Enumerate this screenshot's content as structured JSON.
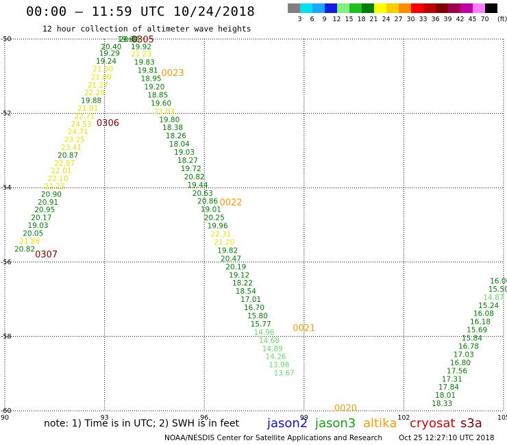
{
  "title": "00:00 – 11:59 UTC 10/24/2018",
  "subtitle": "12 hour collection of altimeter wave heights",
  "scale": {
    "unit": "(ft)",
    "bins": [
      {
        "label": "3",
        "color": "#808080"
      },
      {
        "label": "6",
        "color": "#00e0f0"
      },
      {
        "label": "9",
        "color": "#18a8ff"
      },
      {
        "label": "12",
        "color": "#1020e0"
      },
      {
        "label": "15",
        "color": "#80f080"
      },
      {
        "label": "18",
        "color": "#20c020"
      },
      {
        "label": "21",
        "color": "#008000"
      },
      {
        "label": "24",
        "color": "#ffff00"
      },
      {
        "label": "27",
        "color": "#ffcc00"
      },
      {
        "label": "30",
        "color": "#ff8c00"
      },
      {
        "label": "33",
        "color": "#ff0000"
      },
      {
        "label": "36",
        "color": "#c00000"
      },
      {
        "label": "39",
        "color": "#800000"
      },
      {
        "label": "42",
        "color": "#a00050"
      },
      {
        "label": "45",
        "color": "#c000a0"
      },
      {
        "label": "70",
        "color": "#ff80ff"
      },
      {
        "label": "",
        "color": "#000000"
      }
    ]
  },
  "chart_data": {
    "type": "scatter",
    "x_ticks": [
      "90",
      "93",
      "96",
      "99",
      "102",
      "105"
    ],
    "y_ticks": [
      "-50",
      "-52",
      "-54",
      "-56",
      "-58",
      "-60"
    ],
    "xlim": [
      90,
      105
    ],
    "ylim": [
      -60,
      -50
    ],
    "grid": true,
    "color_rules": {
      "light_green": [
        0,
        15
      ],
      "green": [
        15,
        21
      ],
      "yellow": [
        21,
        24
      ]
    },
    "colors": {
      "light_green": "#66dd66",
      "green": "#008000",
      "yellow": "#e6e600",
      "altika": "#ff9900",
      "cryosat": "#800000"
    },
    "time_labels": [
      {
        "text": "0305",
        "lon": 94.15,
        "lat": -50.0,
        "sat": "cryosat"
      },
      {
        "text": "0023",
        "lon": 95.05,
        "lat": -50.9,
        "sat": "altika"
      },
      {
        "text": "0306",
        "lon": 93.1,
        "lat": -52.25,
        "sat": "cryosat"
      },
      {
        "text": "0022",
        "lon": 96.8,
        "lat": -54.38,
        "sat": "altika"
      },
      {
        "text": "0307",
        "lon": 91.25,
        "lat": -55.78,
        "sat": "cryosat"
      },
      {
        "text": "0021",
        "lon": 99.0,
        "lat": -57.76,
        "sat": "altika"
      },
      {
        "text": "0020",
        "lon": 100.25,
        "lat": -59.92,
        "sat": "altika"
      }
    ],
    "tracks": [
      {
        "points": [
          [
            93.7,
            -50.0,
            19.69
          ],
          [
            93.75,
            -50.0,
            20.4
          ],
          [
            93.2,
            -50.2,
            20.4
          ],
          [
            93.15,
            -50.38,
            19.29
          ],
          [
            93.05,
            -50.59,
            19.24
          ],
          [
            92.95,
            -50.8,
            21.3
          ],
          [
            92.9,
            -51.02,
            21.0
          ],
          [
            92.8,
            -51.23,
            21.27
          ],
          [
            92.7,
            -51.44,
            22.2
          ],
          [
            92.6,
            -51.65,
            19.88
          ],
          [
            92.5,
            -51.86,
            21.91
          ],
          [
            92.4,
            -52.07,
            22.71
          ],
          [
            92.3,
            -52.28,
            24.53
          ],
          [
            92.2,
            -52.49,
            24.71
          ],
          [
            92.1,
            -52.7,
            23.25
          ],
          [
            92.0,
            -52.91,
            23.41
          ],
          [
            91.9,
            -53.12,
            20.87
          ],
          [
            91.8,
            -53.33,
            22.87
          ],
          [
            91.7,
            -53.54,
            22.01
          ],
          [
            91.6,
            -53.75,
            22.1
          ],
          [
            91.5,
            -53.96,
            21.23
          ],
          [
            91.4,
            -54.17,
            20.9
          ],
          [
            91.3,
            -54.38,
            20.91
          ],
          [
            91.2,
            -54.59,
            20.95
          ],
          [
            91.1,
            -54.8,
            20.17
          ],
          [
            91.0,
            -55.01,
            19.03
          ],
          [
            90.85,
            -55.22,
            20.05
          ],
          [
            90.75,
            -55.43,
            21.88
          ],
          [
            90.6,
            -55.64,
            20.82
          ]
        ]
      },
      {
        "points": [
          [
            94.1,
            -50.2,
            19.92
          ],
          [
            94.1,
            -50.4,
            21.23
          ],
          [
            94.2,
            -50.62,
            19.83
          ],
          [
            94.3,
            -50.84,
            19.81
          ],
          [
            94.4,
            -51.06,
            18.95
          ],
          [
            94.5,
            -51.28,
            19.2
          ],
          [
            94.6,
            -51.5,
            18.85
          ],
          [
            94.7,
            -51.72,
            19.6
          ],
          [
            94.8,
            -51.94,
            21.03
          ],
          [
            94.95,
            -52.16,
            19.8
          ],
          [
            95.05,
            -52.38,
            18.38
          ],
          [
            95.15,
            -52.6,
            18.26
          ],
          [
            95.25,
            -52.82,
            18.04
          ],
          [
            95.4,
            -53.04,
            19.03
          ],
          [
            95.5,
            -53.26,
            18.27
          ],
          [
            95.6,
            -53.48,
            19.72
          ],
          [
            95.7,
            -53.7,
            20.82
          ],
          [
            95.8,
            -53.92,
            19.44
          ],
          [
            95.95,
            -54.14,
            20.63
          ],
          [
            96.1,
            -54.36,
            20.86
          ],
          [
            96.2,
            -54.58,
            19.01
          ],
          [
            96.3,
            -54.8,
            20.25
          ],
          [
            96.4,
            -55.02,
            19.96
          ],
          [
            96.5,
            -55.24,
            22.31
          ],
          [
            96.6,
            -55.46,
            21.2
          ],
          [
            96.7,
            -55.68,
            19.82
          ],
          [
            96.8,
            -55.9,
            20.47
          ],
          [
            96.95,
            -56.12,
            20.19
          ],
          [
            97.05,
            -56.34,
            19.12
          ],
          [
            97.15,
            -56.56,
            18.22
          ],
          [
            97.25,
            -56.78,
            18.54
          ],
          [
            97.4,
            -57.0,
            17.01
          ],
          [
            97.5,
            -57.22,
            16.7
          ],
          [
            97.6,
            -57.44,
            15.8
          ],
          [
            97.7,
            -57.66,
            15.77
          ],
          [
            97.8,
            -57.88,
            14.96
          ],
          [
            97.95,
            -58.1,
            14.68
          ],
          [
            98.05,
            -58.32,
            14.89
          ],
          [
            98.15,
            -58.54,
            14.26
          ],
          [
            98.25,
            -58.76,
            13.98
          ],
          [
            98.4,
            -58.98,
            13.67
          ]
        ]
      },
      {
        "points": [
          [
            104.9,
            -56.5,
            16.0
          ],
          [
            104.85,
            -56.72,
            15.5
          ],
          [
            104.7,
            -56.94,
            14.87
          ],
          [
            104.55,
            -57.16,
            15.24
          ],
          [
            104.4,
            -57.38,
            16.08
          ],
          [
            104.3,
            -57.6,
            16.18
          ],
          [
            104.2,
            -57.82,
            15.69
          ],
          [
            104.05,
            -58.04,
            15.84
          ],
          [
            103.95,
            -58.26,
            16.78
          ],
          [
            103.8,
            -58.48,
            17.03
          ],
          [
            103.7,
            -58.7,
            16.8
          ],
          [
            103.6,
            -58.92,
            17.56
          ],
          [
            103.45,
            -59.14,
            17.31
          ],
          [
            103.35,
            -59.36,
            17.84
          ],
          [
            103.25,
            -59.58,
            18.01
          ],
          [
            103.15,
            -59.8,
            18.33
          ]
        ]
      }
    ]
  },
  "footer": {
    "note": "note: 1) Time is in UTC; 2) SWH is in feet",
    "legend": [
      {
        "name": "jason2",
        "color": "#1010d0"
      },
      {
        "name": "jason3",
        "color": "#10a010"
      },
      {
        "name": "altika",
        "color": "#ff9900"
      },
      {
        "name": "cryosat",
        "color": "#e00000"
      },
      {
        "name": "s3a",
        "color": "#800000"
      }
    ],
    "credit": "NOAA/NESDIS Center for Satellite Applications and Research",
    "timestamp": "Oct 25 12:27:10 UTC 2018"
  }
}
